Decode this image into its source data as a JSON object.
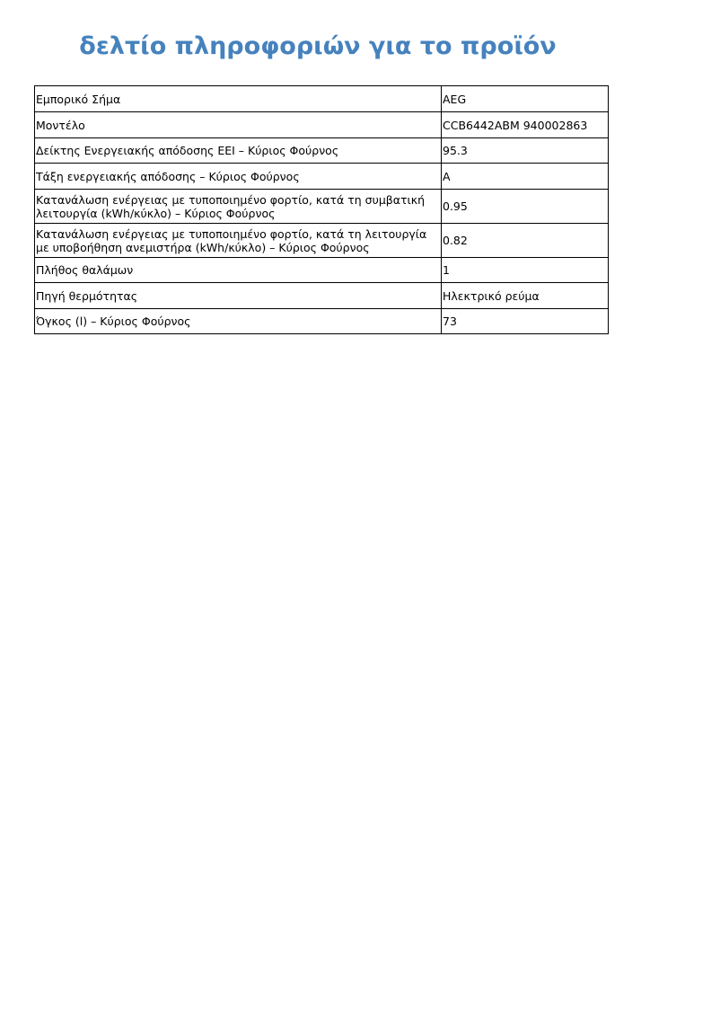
{
  "title": "δελτίο πληροφοριών για το προϊόν",
  "rows": [
    {
      "label": "Εμπορικό Σήμα",
      "value": "AEG"
    },
    {
      "label": "Μοντέλο",
      "value": "CCB6442ABM 940002863"
    },
    {
      "label": "Δείκτης Ενεργειακής απόδοσης EEI – Κύριος Φούρνος",
      "value": "95.3"
    },
    {
      "label": "Τάξη ενεργειακής απόδοσης – Κύριος Φούρνος",
      "value": "A"
    },
    {
      "label": "Κατανάλωση ενέργειας με τυποποιημένο φορτίο, κατά τη συμβατική λειτουργία (kWh/κύκλο) – Κύριος Φούρνος",
      "value": "0.95"
    },
    {
      "label": "Κατανάλωση ενέργειας με τυποποιημένο φορτίο, κατά τη λειτουργία με υποβοήθηση ανεμιστήρα (kWh/κύκλο) – Κύριος Φούρνος",
      "value": "0.82"
    },
    {
      "label": "Πλήθος θαλάμων",
      "value": "1"
    },
    {
      "label": "Πηγή θερμότητας",
      "value": "Ηλεκτρικό ρεύμα"
    },
    {
      "label": "Όγκος (l) – Κύριος Φούρνος",
      "value": "73"
    }
  ]
}
